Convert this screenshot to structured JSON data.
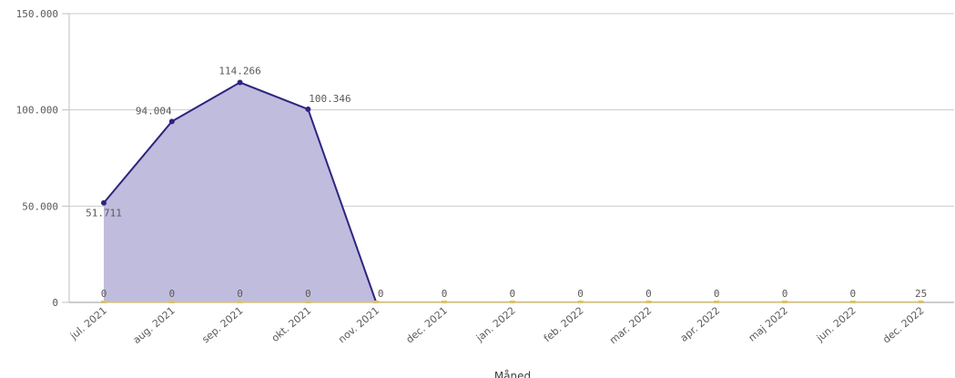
{
  "chart_data": {
    "type": "area",
    "title": "",
    "xlabel": "Måned",
    "ylabel": "",
    "ylim": [
      0,
      150000
    ],
    "yticks": [
      {
        "value": 0,
        "label": "0"
      },
      {
        "value": 50000,
        "label": "50.000"
      },
      {
        "value": 100000,
        "label": "100.000"
      },
      {
        "value": 150000,
        "label": "150.000"
      }
    ],
    "grid": true,
    "legend": "none",
    "categories": [
      "jul. 2021",
      "aug. 2021",
      "sep. 2021",
      "okt. 2021",
      "nov. 2021",
      "dec. 2021",
      "jan. 2022",
      "feb. 2022",
      "mar. 2022",
      "apr. 2022",
      "maj 2022",
      "jun. 2022",
      "dec. 2022"
    ],
    "series": [
      {
        "name": "series-1",
        "type": "area",
        "color": "#2e2580",
        "fill": "#c0bcdd",
        "values": [
          51711,
          94004,
          114266,
          100346,
          0,
          null,
          null,
          null,
          null,
          null,
          null,
          null,
          null
        ],
        "labels": [
          "51.711",
          "94.004",
          "114.266",
          "100.346",
          "",
          "",
          "",
          "",
          "",
          "",
          "",
          "",
          ""
        ]
      },
      {
        "name": "series-2",
        "type": "line",
        "color": "#d9c36a",
        "values": [
          0,
          0,
          0,
          0,
          0,
          0,
          0,
          0,
          0,
          0,
          0,
          0,
          25
        ],
        "labels": [
          "0",
          "0",
          "0",
          "0",
          "0",
          "0",
          "0",
          "0",
          "0",
          "0",
          "0",
          "0",
          "25"
        ]
      }
    ]
  },
  "colors": {
    "grid": "#cccccc",
    "axis": "#bfbfbf",
    "text": "#595959"
  }
}
